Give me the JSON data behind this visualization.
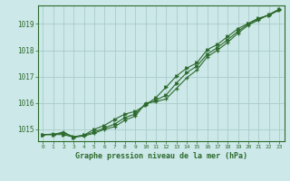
{
  "title": "Graphe pression niveau de la mer (hPa)",
  "bg_color": "#cce8e8",
  "grid_color": "#aacccc",
  "line_color": "#2d6a2d",
  "xlim": [
    -0.5,
    23.5
  ],
  "ylim": [
    1014.55,
    1019.7
  ],
  "yticks": [
    1015,
    1016,
    1017,
    1018,
    1019
  ],
  "xticks": [
    0,
    1,
    2,
    3,
    4,
    5,
    6,
    7,
    8,
    9,
    10,
    11,
    12,
    13,
    14,
    15,
    16,
    17,
    18,
    19,
    20,
    21,
    22,
    23
  ],
  "series1_x": [
    0,
    1,
    2,
    3,
    4,
    5,
    6,
    7,
    8,
    9,
    10,
    11,
    12,
    13,
    14,
    15,
    16,
    17,
    18,
    19,
    20,
    21,
    22,
    23
  ],
  "series1_y": [
    1014.8,
    1014.8,
    1014.9,
    1014.7,
    1014.75,
    1014.85,
    1015.0,
    1015.1,
    1015.35,
    1015.5,
    1016.0,
    1016.05,
    1016.15,
    1016.55,
    1016.95,
    1017.25,
    1017.75,
    1018.0,
    1018.3,
    1018.65,
    1018.95,
    1019.15,
    1019.35,
    1019.55
  ],
  "series2_x": [
    0,
    1,
    2,
    3,
    4,
    5,
    6,
    7,
    8,
    9,
    10,
    11,
    12,
    13,
    14,
    15,
    16,
    17,
    18,
    19,
    20,
    21,
    22,
    23
  ],
  "series2_y": [
    1014.8,
    1014.82,
    1014.85,
    1014.72,
    1014.78,
    1014.9,
    1015.05,
    1015.2,
    1015.45,
    1015.58,
    1015.95,
    1016.1,
    1016.3,
    1016.75,
    1017.15,
    1017.4,
    1017.85,
    1018.1,
    1018.4,
    1018.72,
    1019.0,
    1019.18,
    1019.35,
    1019.55
  ],
  "series3_x": [
    0,
    1,
    2,
    3,
    4,
    5,
    6,
    7,
    8,
    9,
    10,
    11,
    12,
    13,
    14,
    15,
    16,
    17,
    18,
    19,
    20,
    21,
    22,
    23
  ],
  "series3_y": [
    1014.8,
    1014.8,
    1014.8,
    1014.7,
    1014.78,
    1015.0,
    1015.15,
    1015.38,
    1015.58,
    1015.68,
    1015.92,
    1016.2,
    1016.6,
    1017.02,
    1017.32,
    1017.52,
    1018.02,
    1018.22,
    1018.52,
    1018.82,
    1019.02,
    1019.22,
    1019.32,
    1019.52
  ]
}
